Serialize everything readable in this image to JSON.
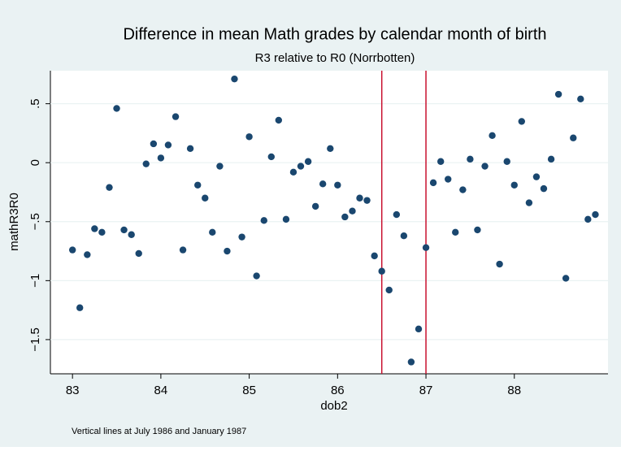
{
  "chart_data": {
    "type": "scatter",
    "title": "Difference in mean Math grades by calendar month of  birth",
    "subtitle": "R3 relative to R0 (Norrbotten)",
    "x_label": "dob2",
    "y_label": "mathR3R0",
    "note": "Vertical lines at July 1986 and January 1987",
    "color": "#1a476f",
    "vline_color": "#c8102e",
    "xlines": [
      86.5,
      87
    ],
    "grid": true,
    "xlim": [
      82.75,
      89.06
    ],
    "ylim": [
      -1.79,
      0.78
    ],
    "xticks": [
      83,
      84,
      85,
      86,
      87,
      88
    ],
    "yticks": [
      {
        "value": 0.5,
        "label": ".5"
      },
      0,
      {
        "value": -0.5,
        "label": "−.5"
      },
      {
        "value": -1,
        "label": "−1"
      },
      {
        "value": -1.5,
        "label": "−1.5"
      }
    ],
    "x": [
      83,
      83.083,
      83.167,
      83.25,
      83.333,
      83.417,
      83.5,
      83.583,
      83.667,
      83.75,
      83.833,
      83.917,
      84,
      84.083,
      84.167,
      84.25,
      84.333,
      84.417,
      84.5,
      84.583,
      84.667,
      84.75,
      84.833,
      84.917,
      85,
      85.083,
      85.167,
      85.25,
      85.333,
      85.417,
      85.5,
      85.583,
      85.667,
      85.75,
      85.833,
      85.917,
      86,
      86.083,
      86.167,
      86.25,
      86.333,
      86.417,
      86.5,
      86.583,
      86.667,
      86.75,
      86.833,
      86.917,
      87,
      87.083,
      87.167,
      87.25,
      87.333,
      87.417,
      87.5,
      87.583,
      87.667,
      87.75,
      87.833,
      87.917,
      88,
      88.083,
      88.167,
      88.25,
      88.333,
      88.417,
      88.5,
      88.583,
      88.667,
      88.75,
      88.833,
      88.917
    ],
    "values": [
      -0.74,
      -1.23,
      -0.78,
      -0.56,
      -0.59,
      -0.21,
      0.46,
      -0.57,
      -0.61,
      -0.77,
      -0.01,
      0.16,
      0.04,
      0.15,
      0.39,
      -0.74,
      0.12,
      -0.19,
      -0.3,
      -0.59,
      -0.03,
      -0.75,
      0.71,
      -0.63,
      0.22,
      -0.96,
      -0.49,
      0.05,
      0.36,
      -0.48,
      -0.08,
      -0.03,
      0.01,
      -0.37,
      -0.18,
      0.12,
      -0.19,
      -0.46,
      -0.41,
      -0.3,
      -0.32,
      -0.79,
      -0.92,
      -1.08,
      -0.44,
      -0.62,
      -1.69,
      -1.41,
      -0.72,
      -0.17,
      0.01,
      -0.14,
      -0.59,
      -0.23,
      0.03,
      -0.57,
      -0.03,
      0.23,
      -0.86,
      0.01,
      -0.19,
      0.35,
      -0.34,
      -0.12,
      -0.22,
      0.03,
      0.58,
      -0.98,
      0.21,
      0.54,
      -0.48,
      -0.44
    ]
  }
}
